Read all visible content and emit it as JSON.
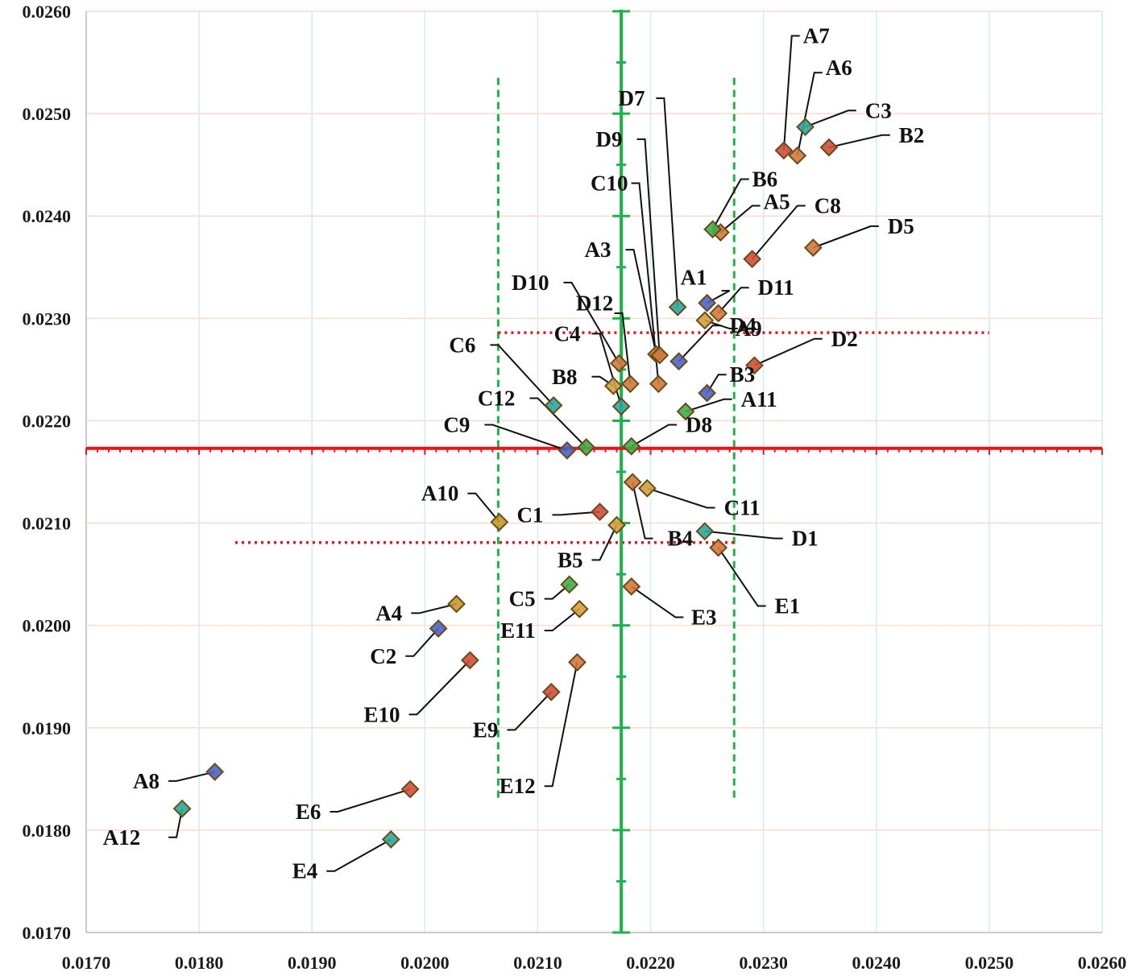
{
  "chart_data": {
    "type": "scatter",
    "title": "",
    "xlabel": "",
    "ylabel": "",
    "xlim": [
      0.017,
      0.026
    ],
    "ylim": [
      0.017,
      0.026
    ],
    "grid": true,
    "x_ticks": [
      "0.0170",
      "0.0180",
      "0.0190",
      "0.0200",
      "0.0210",
      "0.0220",
      "0.0230",
      "0.0240",
      "0.0250",
      "0.0260"
    ],
    "y_ticks": [
      "0.0170",
      "0.0180",
      "0.0190",
      "0.0200",
      "0.0210",
      "0.0220",
      "0.0230",
      "0.0240",
      "0.0250",
      "0.0260"
    ],
    "reference_lines": {
      "mean_x": 0.02174,
      "mean_y": 0.02173,
      "band_x": [
        0.02065,
        0.02274
      ],
      "band_x_y_span": [
        0.0183,
        0.02535
      ],
      "band_y": [
        0.02081,
        0.02286
      ],
      "band_y_lower_x_span": [
        0.01832,
        0.02275
      ],
      "band_y_upper_x_span": [
        0.02065,
        0.025
      ],
      "colors": {
        "mean": "#1db34b",
        "mean_h": "#e8141c",
        "band_x": "#1db34b",
        "band_y": "#e8141c"
      }
    },
    "points": [
      {
        "label": "A1",
        "x": 0.0225,
        "y": 0.02315,
        "color": "#4a63c8",
        "lx": 0.0225,
        "ly": 0.0234,
        "lax": 0.0227,
        "lay": 0.02327
      },
      {
        "label": "A3",
        "x": 0.02205,
        "y": 0.02265,
        "color": "#d07a3a",
        "lx": 0.02165,
        "ly": 0.02367,
        "lax": 0.02185,
        "lay": 0.02367
      },
      {
        "label": "A4",
        "x": 0.02028,
        "y": 0.02021,
        "color": "#c69a2a",
        "lx": 0.0198,
        "ly": 0.02012,
        "lax": 0.01995,
        "lay": 0.02012
      },
      {
        "label": "A5",
        "x": 0.02262,
        "y": 0.02384,
        "color": "#d07a3a",
        "lx": 0.023,
        "ly": 0.02414,
        "lax": 0.0229,
        "lay": 0.0241
      },
      {
        "label": "A6",
        "x": 0.0233,
        "y": 0.02459,
        "color": "#d07a3a",
        "lx": 0.02355,
        "ly": 0.02545,
        "lax": 0.02345,
        "lay": 0.0254
      },
      {
        "label": "A7",
        "x": 0.02318,
        "y": 0.02464,
        "color": "#d0503a",
        "lx": 0.02335,
        "ly": 0.02576,
        "lax": 0.02325,
        "lay": 0.02576
      },
      {
        "label": "A8",
        "x": 0.01814,
        "y": 0.01857,
        "color": "#4a63c8",
        "lx": 0.01765,
        "ly": 0.01848,
        "lax": 0.0178,
        "lay": 0.01848
      },
      {
        "label": "A9",
        "x": 0.02248,
        "y": 0.02298,
        "color": "#d4a040",
        "lx": 0.02275,
        "ly": 0.0229,
        "lax": 0.0227,
        "lay": 0.0229
      },
      {
        "label": "A10",
        "x": 0.02066,
        "y": 0.02101,
        "color": "#c69a2a",
        "lx": 0.0203,
        "ly": 0.02129,
        "lax": 0.02045,
        "lay": 0.02129
      },
      {
        "label": "A11",
        "x": 0.02231,
        "y": 0.02209,
        "color": "#3fae4a",
        "lx": 0.0228,
        "ly": 0.02221,
        "lax": 0.02265,
        "lay": 0.02221
      },
      {
        "label": "A12",
        "x": 0.01785,
        "y": 0.01821,
        "color": "#2aa89a",
        "lx": 0.01748,
        "ly": 0.01793,
        "lax": 0.0178,
        "lay": 0.01793
      },
      {
        "label": "B2",
        "x": 0.02358,
        "y": 0.02467,
        "color": "#d0503a",
        "lx": 0.0242,
        "ly": 0.02479,
        "lax": 0.02405,
        "lay": 0.02479
      },
      {
        "label": "B3",
        "x": 0.0225,
        "y": 0.02227,
        "color": "#4a63c8",
        "lx": 0.0227,
        "ly": 0.02245,
        "lax": 0.0226,
        "lay": 0.02245
      },
      {
        "label": "B4",
        "x": 0.02184,
        "y": 0.0214,
        "color": "#d07a3a",
        "lx": 0.02215,
        "ly": 0.02085,
        "lax": 0.02195,
        "lay": 0.02085
      },
      {
        "label": "B5",
        "x": 0.0217,
        "y": 0.02098,
        "color": "#d4a040",
        "lx": 0.0214,
        "ly": 0.02064,
        "lax": 0.02155,
        "lay": 0.02064
      },
      {
        "label": "B6",
        "x": 0.02255,
        "y": 0.02387,
        "color": "#3fae4a",
        "lx": 0.0229,
        "ly": 0.02436,
        "lax": 0.0228,
        "lay": 0.02436
      },
      {
        "label": "B8",
        "x": 0.02167,
        "y": 0.02234,
        "color": "#d4a040",
        "lx": 0.02135,
        "ly": 0.02243,
        "lax": 0.02155,
        "lay": 0.02243
      },
      {
        "label": "C1",
        "x": 0.02155,
        "y": 0.02111,
        "color": "#d0503a",
        "lx": 0.02105,
        "ly": 0.02108,
        "lax": 0.0212,
        "lay": 0.02108
      },
      {
        "label": "C2",
        "x": 0.02012,
        "y": 0.01997,
        "color": "#4a63c8",
        "lx": 0.01975,
        "ly": 0.0197,
        "lax": 0.0199,
        "lay": 0.0197
      },
      {
        "label": "C3",
        "x": 0.02337,
        "y": 0.02487,
        "color": "#2aa89a",
        "lx": 0.0239,
        "ly": 0.02503,
        "lax": 0.02375,
        "lay": 0.02503
      },
      {
        "label": "C4",
        "x": 0.02174,
        "y": 0.02214,
        "color": "#2aa89a",
        "lx": 0.02138,
        "ly": 0.02285,
        "lax": 0.02155,
        "lay": 0.02285
      },
      {
        "label": "C5",
        "x": 0.02128,
        "y": 0.0204,
        "color": "#3fae4a",
        "lx": 0.02098,
        "ly": 0.02026,
        "lax": 0.02113,
        "lay": 0.02026
      },
      {
        "label": "C6",
        "x": 0.02114,
        "y": 0.02215,
        "color": "#2aa89a",
        "lx": 0.02045,
        "ly": 0.02274,
        "lax": 0.02065,
        "lay": 0.02274
      },
      {
        "label": "C8",
        "x": 0.0229,
        "y": 0.02358,
        "color": "#d0503a",
        "lx": 0.02345,
        "ly": 0.0241,
        "lax": 0.0233,
        "lay": 0.0241
      },
      {
        "label": "C9",
        "x": 0.02126,
        "y": 0.02171,
        "color": "#4a63c8",
        "lx": 0.0204,
        "ly": 0.02196,
        "lax": 0.0206,
        "lay": 0.02196
      },
      {
        "label": "C10",
        "x": 0.02207,
        "y": 0.02236,
        "color": "#d07a3a",
        "lx": 0.0218,
        "ly": 0.02432,
        "lax": 0.0219,
        "lay": 0.02432
      },
      {
        "label": "C11",
        "x": 0.02197,
        "y": 0.02134,
        "color": "#d4a040",
        "lx": 0.02265,
        "ly": 0.02115,
        "lax": 0.0225,
        "lay": 0.02115
      },
      {
        "label": "C12",
        "x": 0.02143,
        "y": 0.02174,
        "color": "#3fae4a",
        "lx": 0.0208,
        "ly": 0.02222,
        "lax": 0.021,
        "lay": 0.02222
      },
      {
        "label": "D1",
        "x": 0.02248,
        "y": 0.02092,
        "color": "#2aa89a",
        "lx": 0.02325,
        "ly": 0.02085,
        "lax": 0.0231,
        "lay": 0.02085
      },
      {
        "label": "D2",
        "x": 0.02292,
        "y": 0.02254,
        "color": "#d0503a",
        "lx": 0.0236,
        "ly": 0.0228,
        "lax": 0.02345,
        "lay": 0.0228
      },
      {
        "label": "D4",
        "x": 0.02225,
        "y": 0.02258,
        "color": "#4a63c8",
        "lx": 0.0227,
        "ly": 0.02293,
        "lax": 0.02255,
        "lay": 0.02293
      },
      {
        "label": "D5",
        "x": 0.02344,
        "y": 0.02369,
        "color": "#d07a3a",
        "lx": 0.0241,
        "ly": 0.0239,
        "lax": 0.02395,
        "lay": 0.0239
      },
      {
        "label": "D7",
        "x": 0.02224,
        "y": 0.02311,
        "color": "#2aa89a",
        "lx": 0.02195,
        "ly": 0.02515,
        "lax": 0.02212,
        "lay": 0.02515
      },
      {
        "label": "D8",
        "x": 0.02183,
        "y": 0.02175,
        "color": "#3fae4a",
        "lx": 0.02231,
        "ly": 0.02196,
        "lax": 0.02216,
        "lay": 0.02196
      },
      {
        "label": "D9",
        "x": 0.02208,
        "y": 0.02264,
        "color": "#d07a3a",
        "lx": 0.02175,
        "ly": 0.02475,
        "lax": 0.02195,
        "lay": 0.02475
      },
      {
        "label": "D10",
        "x": 0.02172,
        "y": 0.02256,
        "color": "#d07a3a",
        "lx": 0.0211,
        "ly": 0.02335,
        "lax": 0.0213,
        "lay": 0.02335
      },
      {
        "label": "D11",
        "x": 0.0226,
        "y": 0.02305,
        "color": "#d07a3a",
        "lx": 0.02295,
        "ly": 0.0233,
        "lax": 0.0228,
        "lay": 0.0233
      },
      {
        "label": "D12",
        "x": 0.02182,
        "y": 0.02236,
        "color": "#d07a3a",
        "lx": 0.02167,
        "ly": 0.02315,
        "lax": 0.02175,
        "lay": 0.02305
      },
      {
        "label": "E1",
        "x": 0.0226,
        "y": 0.02076,
        "color": "#d07a3a",
        "lx": 0.0231,
        "ly": 0.02019,
        "lax": 0.02295,
        "lay": 0.02019
      },
      {
        "label": "E3",
        "x": 0.02183,
        "y": 0.02038,
        "color": "#d07a3a",
        "lx": 0.02236,
        "ly": 0.02008,
        "lax": 0.02222,
        "lay": 0.02008
      },
      {
        "label": "E4",
        "x": 0.0197,
        "y": 0.01791,
        "color": "#2aa89a",
        "lx": 0.01905,
        "ly": 0.0176,
        "lax": 0.0192,
        "lay": 0.0176
      },
      {
        "label": "E6",
        "x": 0.01987,
        "y": 0.0184,
        "color": "#d0503a",
        "lx": 0.01908,
        "ly": 0.01818,
        "lax": 0.01923,
        "lay": 0.01818
      },
      {
        "label": "E9",
        "x": 0.02112,
        "y": 0.01935,
        "color": "#d0503a",
        "lx": 0.02065,
        "ly": 0.01898,
        "lax": 0.0208,
        "lay": 0.01898
      },
      {
        "label": "E10",
        "x": 0.0204,
        "y": 0.01966,
        "color": "#d0503a",
        "lx": 0.01978,
        "ly": 0.01913,
        "lax": 0.01993,
        "lay": 0.01913
      },
      {
        "label": "E11",
        "x": 0.02137,
        "y": 0.02016,
        "color": "#d4a040",
        "lx": 0.02098,
        "ly": 0.01995,
        "lax": 0.02113,
        "lay": 0.01995
      },
      {
        "label": "E12",
        "x": 0.02135,
        "y": 0.01964,
        "color": "#d07a3a",
        "lx": 0.02098,
        "ly": 0.01843,
        "lax": 0.02113,
        "lay": 0.01843
      }
    ]
  }
}
